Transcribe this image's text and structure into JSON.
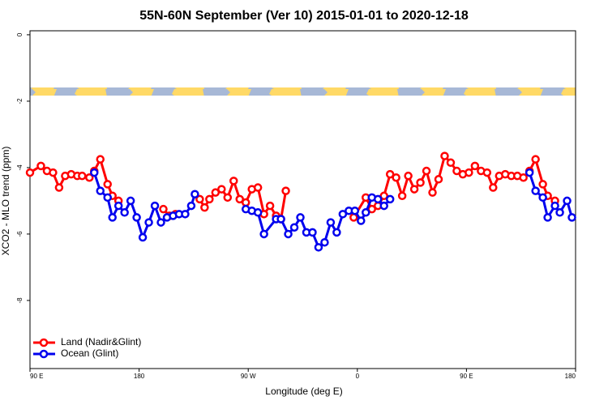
{
  "chart_data": {
    "type": "line",
    "title": "55N-60N September (Ver 10)   2015-01-01 to 2020-12-18",
    "x_label": "Longitude (deg E)",
    "y_label": "XCO2 - MLO trend (ppm)",
    "xlim": [
      90,
      540
    ],
    "ylim": [
      -10.05,
      0.12
    ],
    "xticks": [
      {
        "value": 90,
        "label": "90 E"
      },
      180,
      {
        "value": 270,
        "label": "90 W"
      },
      {
        "value": 360,
        "label": "0"
      },
      {
        "value": 450,
        "label": "90 E"
      },
      {
        "value": 540,
        "label": "180"
      }
    ],
    "yticks": [
      0,
      -2,
      -4,
      -6,
      -8
    ],
    "legend": "bottom-left",
    "series": [
      {
        "name": "Land (Nadir&Glint)",
        "color": "#ff0000",
        "x": [
          90,
          99,
          104,
          109,
          114,
          119,
          124,
          129,
          133,
          139,
          143,
          148,
          154,
          158,
          163,
          null,
          200,
          205,
          210,
          null,
          230,
          234,
          238,
          243,
          248,
          253,
          258,
          263,
          268,
          273,
          278,
          283,
          288,
          293,
          297,
          301,
          null,
          357,
          367,
          372,
          377,
          382,
          387,
          392,
          397,
          402,
          407,
          412,
          417,
          422,
          427,
          432,
          437,
          442,
          447,
          452,
          457,
          462,
          467,
          472,
          477,
          482,
          487,
          492,
          497,
          502,
          507,
          513,
          517,
          523
        ],
        "values": [
          -4.15,
          -3.95,
          -4.1,
          -4.15,
          -4.6,
          -4.25,
          -4.2,
          -4.25,
          -4.25,
          -4.3,
          -4.1,
          -3.75,
          -4.5,
          -4.85,
          -5.0,
          null,
          -5.25,
          -5.45,
          -5.4,
          null,
          -4.95,
          -5.2,
          -4.95,
          -4.75,
          -4.65,
          -4.9,
          -4.4,
          -4.95,
          -5.05,
          -4.65,
          -4.6,
          -5.4,
          -5.15,
          -5.45,
          -5.55,
          -4.7,
          null,
          -5.5,
          -4.9,
          -5.25,
          -5.15,
          -4.85,
          -4.2,
          -4.3,
          -4.85,
          -4.25,
          -4.65,
          -4.45,
          -4.1,
          -4.75,
          -4.35,
          -3.65,
          -3.85,
          -4.1,
          -4.2,
          -4.15,
          -3.95,
          -4.1,
          -4.15,
          -4.6,
          -4.25,
          -4.2,
          -4.25,
          -4.25,
          -4.3,
          -4.1,
          -3.75,
          -4.5,
          -4.85,
          -5.0
        ]
      },
      {
        "name": "Ocean (Glint)",
        "color": "#0000ee",
        "x": [
          143,
          148,
          154,
          158,
          163,
          168,
          173,
          178,
          183,
          188,
          193,
          198,
          203,
          208,
          213,
          218,
          223,
          226,
          null,
          268,
          273,
          278,
          283,
          293,
          297,
          303,
          308,
          313,
          318,
          323,
          328,
          333,
          338,
          343,
          348,
          353,
          358,
          363,
          367,
          372,
          377,
          382,
          387,
          null,
          502,
          507,
          513,
          517,
          523,
          527,
          533,
          537
        ],
        "values": [
          -4.15,
          -4.7,
          -4.9,
          -5.5,
          -5.15,
          -5.35,
          -5.0,
          -5.5,
          -6.1,
          -5.65,
          -5.15,
          -5.65,
          -5.5,
          -5.45,
          -5.4,
          -5.4,
          -5.15,
          -4.8,
          null,
          -5.25,
          -5.3,
          -5.35,
          -6.0,
          -5.55,
          -5.55,
          -6.0,
          -5.8,
          -5.5,
          -5.95,
          -5.95,
          -6.4,
          -6.25,
          -5.65,
          -5.95,
          -5.4,
          -5.3,
          -5.3,
          -5.6,
          -5.35,
          -4.9,
          -4.95,
          -5.15,
          -4.95,
          null,
          -4.15,
          -4.7,
          -4.9,
          -5.5,
          -5.15,
          -5.35,
          -5.0,
          -5.5
        ]
      }
    ]
  }
}
